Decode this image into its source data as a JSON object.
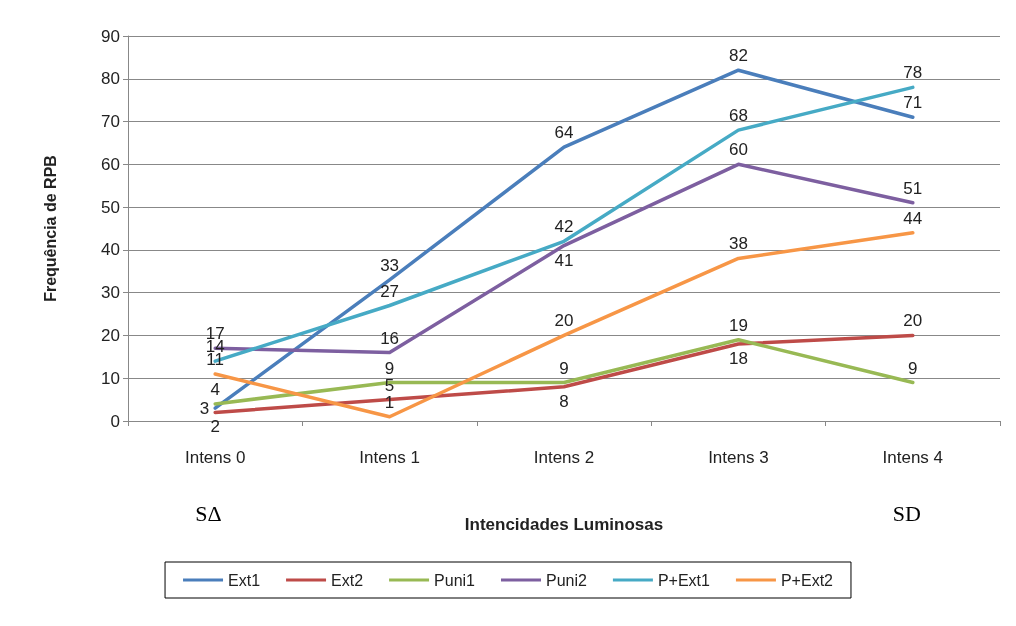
{
  "chart_data": {
    "type": "line",
    "xlabel": "Intencidades Luminosas",
    "ylabel": "Frequência de RPB",
    "categories": [
      "Intens 0",
      "Intens 1",
      "Intens 2",
      "Intens 3",
      "Intens 4"
    ],
    "series": [
      {
        "name": "Ext1",
        "color": "#4a7ebb",
        "values": [
          3,
          33,
          64,
          82,
          71
        ]
      },
      {
        "name": "Ext2",
        "color": "#be4b48",
        "values": [
          2,
          5,
          8,
          18,
          20
        ]
      },
      {
        "name": "Puni1",
        "color": "#98b954",
        "values": [
          4,
          9,
          9,
          19,
          9
        ]
      },
      {
        "name": "Puni2",
        "color": "#7d5fa0",
        "values": [
          17,
          16,
          41,
          60,
          51
        ]
      },
      {
        "name": "P+Ext1",
        "color": "#46aac5",
        "values": [
          14,
          27,
          42,
          68,
          78
        ]
      },
      {
        "name": "P+Ext2",
        "color": "#f79646",
        "values": [
          11,
          1,
          20,
          38,
          44
        ]
      }
    ],
    "ylim": [
      0,
      90
    ],
    "yticks": [
      0,
      10,
      20,
      30,
      40,
      50,
      60,
      70,
      80,
      90
    ],
    "grid": "y",
    "legend": "bottom",
    "marker": "none",
    "line_style": "solid",
    "data_labels": true,
    "annotations": [
      "SΔ",
      "SD"
    ]
  }
}
